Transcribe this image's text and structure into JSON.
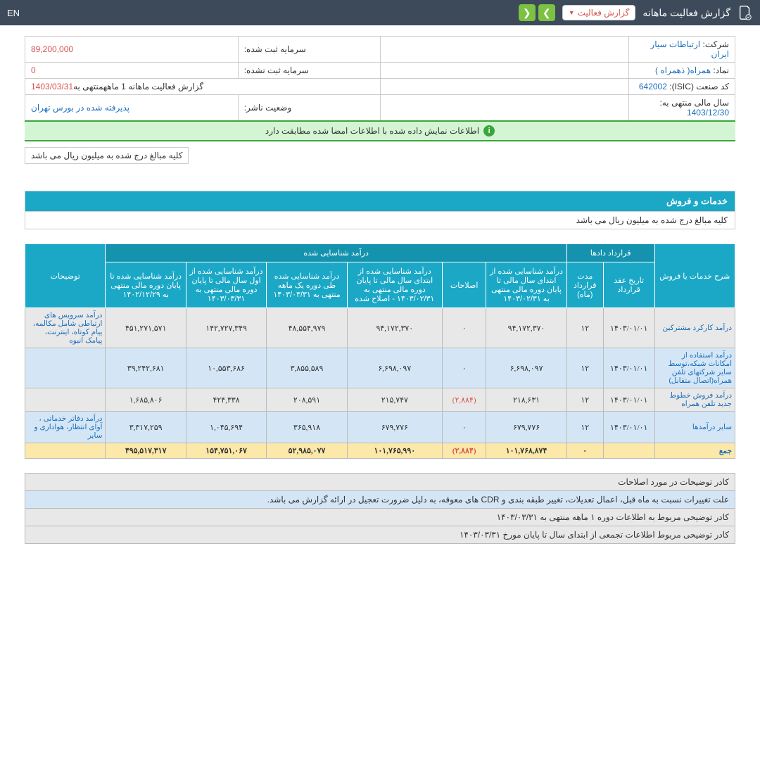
{
  "header": {
    "title": "گزارش فعالیت ماهانه",
    "dropdown": "گزارش فعالیت",
    "lang": "EN"
  },
  "info": {
    "company_label": "شرکت:",
    "company_value": "ارتباطات سیار ایران",
    "capital_reg_label": "سرمایه ثبت شده:",
    "capital_reg_value": "89,200,000",
    "symbol_label": "نماد:",
    "symbol_value": "همراه( ذهمراه )",
    "capital_unreg_label": "سرمایه ثبت نشده:",
    "capital_unreg_value": "0",
    "isic_label": "کد صنعت (ISIC):",
    "isic_value": "642002",
    "report_label_pre": "گزارش فعالیت ماهانه 1 ماهه",
    "report_label_post": "منتهی به",
    "report_date": "1403/03/31",
    "fyear_label": "سال مالی منتهی به:",
    "fyear_value": "1403/12/30",
    "status_label": "وضعیت ناشر:",
    "status_value": "پذیرفته شده در بورس تهران"
  },
  "verify": "اطلاعات نمایش داده شده با اطلاعات امضا شده مطابقت دارد",
  "unit_note": "کلیه مبالغ درج شده به میلیون ریال می باشد",
  "section": {
    "title": "خدمات و فروش",
    "subtitle": "کلیه مبالغ درج شده به میلیون ریال می باشد"
  },
  "thead": {
    "c1": "شرح خدمات یا فروش",
    "g_contract": "قرارداد دادها",
    "g_income": "درآمد شناسایی شده",
    "c_notes": "توضیحات",
    "c_date": "تاریخ عقد قرارداد",
    "c_dur": "مدت قرارداد (ماه)",
    "c_i1": "درآمد شناسایی شده از ابتدای سال مالی تا پایان دوره مالی منتهی به ۱۴۰۳/۰۲/۳۱",
    "c_i2": "اصلاحات",
    "c_i3": "درآمد شناسایی شده از ابتدای سال مالی تا پایان دوره مالی منتهی به ۱۴۰۳/۰۲/۳۱ - اصلاح شده",
    "c_i4": "درآمد شناسایی شده طی دوره یک ماهه منتهی به ۱۴۰۳/۰۳/۳۱",
    "c_i5": "درآمد شناسایی شده از اول سال مالی تا پایان دوره مالی منتهی به ۱۴۰۳/۰۳/۳۱",
    "c_i6": "درآمد شناسایی شده تا پایان دوره مالی منتهی به ۱۴۰۲/۱۲/۲۹"
  },
  "rows": [
    {
      "desc": "درآمد کارکرد مشترکین",
      "date": "۱۴۰۳/۰۱/۰۱",
      "dur": "۱۲",
      "v1": "۹۴,۱۷۲,۳۷۰",
      "adj": "۰",
      "v3": "۹۴,۱۷۲,۳۷۰",
      "v4": "۴۸,۵۵۴,۹۷۹",
      "v5": "۱۴۲,۷۲۷,۳۴۹",
      "v6": "۴۵۱,۲۷۱,۵۷۱",
      "note": "درآمد سرویس های ارتباطی شامل مکالمه، پیام کوتاه، اینترنت، پیامک انبوه"
    },
    {
      "desc": "درآمد استفاده از امکانات شبکه،توسط سایر شرکتهای تلفن همراه(اتصال متقابل)",
      "date": "۱۴۰۳/۰۱/۰۱",
      "dur": "۱۲",
      "v1": "۶,۶۹۸,۰۹۷",
      "adj": "۰",
      "v3": "۶,۶۹۸,۰۹۷",
      "v4": "۳,۸۵۵,۵۸۹",
      "v5": "۱۰,۵۵۳,۶۸۶",
      "v6": "۳۹,۲۴۲,۶۸۱",
      "note": ""
    },
    {
      "desc": "درآمد فروش خطوط جدید تلفن همراه",
      "date": "۱۴۰۳/۰۱/۰۱",
      "dur": "۱۲",
      "v1": "۲۱۸,۶۳۱",
      "adj": "(۲,۸۸۴)",
      "v3": "۲۱۵,۷۴۷",
      "v4": "۲۰۸,۵۹۱",
      "v5": "۴۲۴,۳۳۸",
      "v6": "۱,۶۸۵,۸۰۶",
      "note": ""
    },
    {
      "desc": "سایر درآمدها",
      "date": "۱۴۰۳/۰۱/۰۱",
      "dur": "۱۲",
      "v1": "۶۷۹,۷۷۶",
      "adj": "۰",
      "v3": "۶۷۹,۷۷۶",
      "v4": "۳۶۵,۹۱۸",
      "v5": "۱,۰۴۵,۶۹۴",
      "v6": "۳,۳۱۷,۲۵۹",
      "note": "درآمد دفاتر خدماتی ، آوای انتظار، هواداری و سایر"
    }
  ],
  "total": {
    "label": "جمع",
    "date": "",
    "dur": "۰",
    "v1": "۱۰۱,۷۶۸,۸۷۴",
    "adj": "(۲,۸۸۴)",
    "v3": "۱۰۱,۷۶۵,۹۹۰",
    "v4": "۵۲,۹۸۵,۰۷۷",
    "v5": "۱۵۴,۷۵۱,۰۶۷",
    "v6": "۴۹۵,۵۱۷,۳۱۷"
  },
  "notes": {
    "n1": "کادر توضیحات در مورد اصلاحات",
    "n2": "علت تغییرات نسبت به ماه قبل، اعمال تعدیلات، تغییر طبقه بندی و CDR های معوقه، به دلیل ضرورت تعجیل در ارائه گزارش می باشد.",
    "n3": "کادر توضیحی مربوط به اطلاعات دوره ۱ ماهه منتهی به ۱۴۰۳/۰۳/۳۱",
    "n4": "کادر توضیحی مربوط اطلاعات تجمعی از ابتدای سال تا پایان مورخ ۱۴۰۳/۰۳/۳۱"
  }
}
